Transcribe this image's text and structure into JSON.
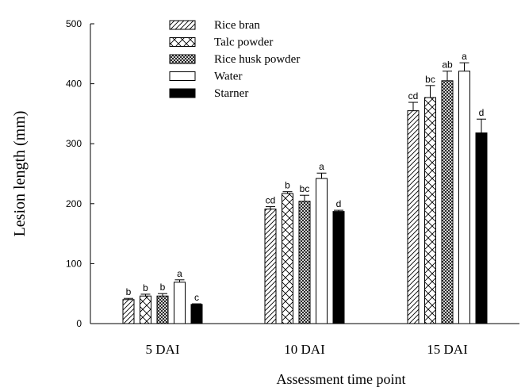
{
  "chart_data": {
    "type": "bar",
    "title": "",
    "xlabel": "Assessment time point",
    "ylabel": "Lesion length (mm)",
    "ylim": [
      0,
      500
    ],
    "yticks": [
      0,
      100,
      200,
      300,
      400,
      500
    ],
    "categories": [
      "5 DAI",
      "10 DAI",
      "15 DAI"
    ],
    "legend_position": "top-left",
    "grid": false,
    "series": [
      {
        "name": "Rice bran",
        "pattern": "diagonal-hatch",
        "values": [
          40,
          191,
          355
        ],
        "errors": [
          2,
          4,
          14
        ],
        "letters": [
          "b",
          "cd",
          "cd"
        ]
      },
      {
        "name": "Talc powder",
        "pattern": "cross-hatch",
        "values": [
          46,
          217,
          377
        ],
        "errors": [
          3,
          3,
          20
        ],
        "letters": [
          "b",
          "b",
          "bc"
        ]
      },
      {
        "name": "Rice husk powder",
        "pattern": "dense-cross-hatch",
        "values": [
          46,
          204,
          405
        ],
        "errors": [
          4,
          10,
          16
        ],
        "letters": [
          "b",
          "bc",
          "ab"
        ]
      },
      {
        "name": "Water",
        "pattern": "white",
        "values": [
          69,
          242,
          421
        ],
        "errors": [
          4,
          9,
          14
        ],
        "letters": [
          "a",
          "a",
          "a"
        ]
      },
      {
        "name": "Starner",
        "pattern": "black",
        "values": [
          32,
          187,
          318
        ],
        "errors": [
          1,
          2,
          23
        ],
        "letters": [
          "c",
          "d",
          "d"
        ]
      }
    ],
    "colors": {
      "bar_outline": "#000000",
      "water_fill": "#ffffff",
      "starner_fill": "#000000"
    }
  }
}
